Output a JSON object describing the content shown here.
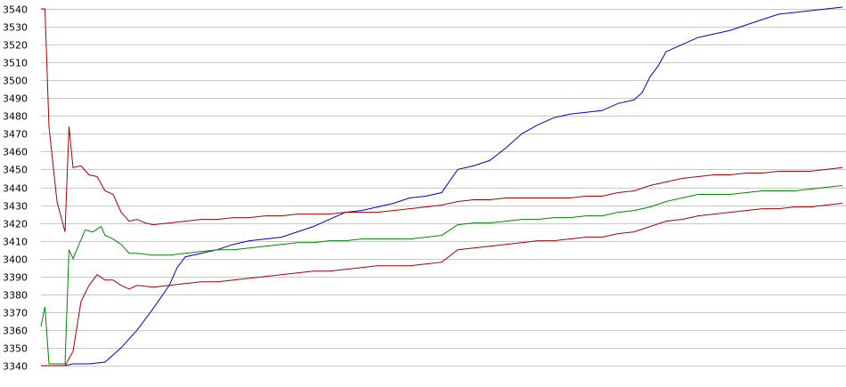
{
  "chart_data": {
    "type": "line",
    "title": "",
    "xlabel": "",
    "ylabel": "",
    "ylim": [
      3340,
      3540
    ],
    "yticks": [
      3540,
      3530,
      3520,
      3510,
      3500,
      3490,
      3480,
      3470,
      3460,
      3450,
      3440,
      3430,
      3420,
      3410,
      3400,
      3390,
      3380,
      3370,
      3360,
      3350,
      3340
    ],
    "grid": "horizontal",
    "legend": "none",
    "xlim": [
      0,
      100
    ],
    "series": [
      {
        "color": "#0000cc",
        "points": [
          [
            0,
            3340
          ],
          [
            3,
            3340
          ],
          [
            4,
            3341
          ],
          [
            6,
            3341
          ],
          [
            8,
            3342
          ],
          [
            10,
            3350
          ],
          [
            12,
            3360
          ],
          [
            14,
            3372
          ],
          [
            16,
            3385
          ],
          [
            17,
            3395
          ],
          [
            18,
            3401
          ],
          [
            20,
            3403
          ],
          [
            22,
            3405
          ],
          [
            24,
            3408
          ],
          [
            26,
            3410
          ],
          [
            28,
            3411
          ],
          [
            30,
            3412
          ],
          [
            32,
            3415
          ],
          [
            34,
            3418
          ],
          [
            36,
            3422
          ],
          [
            38,
            3426
          ],
          [
            40,
            3427
          ],
          [
            42,
            3429
          ],
          [
            44,
            3431
          ],
          [
            46,
            3434
          ],
          [
            48,
            3435
          ],
          [
            50,
            3437
          ],
          [
            52,
            3450
          ],
          [
            54,
            3452
          ],
          [
            56,
            3455
          ],
          [
            58,
            3462
          ],
          [
            60,
            3470
          ],
          [
            62,
            3475
          ],
          [
            64,
            3479
          ],
          [
            66,
            3481
          ],
          [
            68,
            3482
          ],
          [
            70,
            3483
          ],
          [
            72,
            3487
          ],
          [
            74,
            3489
          ],
          [
            75,
            3493
          ],
          [
            76,
            3502
          ],
          [
            77,
            3508
          ],
          [
            78,
            3516
          ],
          [
            80,
            3520
          ],
          [
            82,
            3524
          ],
          [
            84,
            3526
          ],
          [
            86,
            3528
          ],
          [
            88,
            3531
          ],
          [
            90,
            3534
          ],
          [
            92,
            3537
          ],
          [
            94,
            3538
          ],
          [
            96,
            3539
          ],
          [
            98,
            3540
          ],
          [
            100,
            3541
          ]
        ]
      },
      {
        "color": "#008800",
        "points": [
          [
            0,
            3362
          ],
          [
            0.5,
            3373
          ],
          [
            1,
            3341
          ],
          [
            3,
            3341
          ],
          [
            3.5,
            3405
          ],
          [
            4,
            3400
          ],
          [
            5.5,
            3416
          ],
          [
            6.5,
            3415
          ],
          [
            7.5,
            3418
          ],
          [
            8,
            3413
          ],
          [
            9,
            3411
          ],
          [
            10,
            3408
          ],
          [
            11,
            3403
          ],
          [
            12,
            3403
          ],
          [
            14,
            3402
          ],
          [
            16,
            3402
          ],
          [
            18,
            3403
          ],
          [
            20,
            3404
          ],
          [
            22,
            3405
          ],
          [
            24,
            3405
          ],
          [
            26,
            3406
          ],
          [
            28,
            3407
          ],
          [
            30,
            3408
          ],
          [
            32,
            3409
          ],
          [
            34,
            3409
          ],
          [
            36,
            3410
          ],
          [
            38,
            3410
          ],
          [
            40,
            3411
          ],
          [
            42,
            3411
          ],
          [
            44,
            3411
          ],
          [
            46,
            3411
          ],
          [
            48,
            3412
          ],
          [
            50,
            3413
          ],
          [
            52,
            3419
          ],
          [
            54,
            3420
          ],
          [
            56,
            3420
          ],
          [
            58,
            3421
          ],
          [
            60,
            3422
          ],
          [
            62,
            3422
          ],
          [
            64,
            3423
          ],
          [
            66,
            3423
          ],
          [
            68,
            3424
          ],
          [
            70,
            3424
          ],
          [
            72,
            3426
          ],
          [
            74,
            3427
          ],
          [
            76,
            3429
          ],
          [
            78,
            3432
          ],
          [
            80,
            3434
          ],
          [
            82,
            3436
          ],
          [
            84,
            3436
          ],
          [
            86,
            3436
          ],
          [
            88,
            3437
          ],
          [
            90,
            3438
          ],
          [
            92,
            3438
          ],
          [
            94,
            3438
          ],
          [
            96,
            3439
          ],
          [
            98,
            3440
          ],
          [
            100,
            3441
          ]
        ]
      },
      {
        "color": "#aa0000",
        "points": [
          [
            0,
            3540
          ],
          [
            0.5,
            3540
          ],
          [
            1,
            3474
          ],
          [
            2,
            3432
          ],
          [
            3,
            3415
          ],
          [
            3.5,
            3474
          ],
          [
            4,
            3451
          ],
          [
            5,
            3452
          ],
          [
            6,
            3447
          ],
          [
            7,
            3446
          ],
          [
            8,
            3438
          ],
          [
            9,
            3436
          ],
          [
            10,
            3426
          ],
          [
            11,
            3421
          ],
          [
            12,
            3422
          ],
          [
            13,
            3420
          ],
          [
            14,
            3419
          ],
          [
            16,
            3420
          ],
          [
            18,
            3421
          ],
          [
            20,
            3422
          ],
          [
            22,
            3422
          ],
          [
            24,
            3423
          ],
          [
            26,
            3423
          ],
          [
            28,
            3424
          ],
          [
            30,
            3424
          ],
          [
            32,
            3425
          ],
          [
            34,
            3425
          ],
          [
            36,
            3425
          ],
          [
            38,
            3426
          ],
          [
            40,
            3426
          ],
          [
            42,
            3426
          ],
          [
            44,
            3427
          ],
          [
            46,
            3428
          ],
          [
            48,
            3429
          ],
          [
            50,
            3430
          ],
          [
            52,
            3432
          ],
          [
            54,
            3433
          ],
          [
            56,
            3433
          ],
          [
            58,
            3434
          ],
          [
            60,
            3434
          ],
          [
            62,
            3434
          ],
          [
            64,
            3434
          ],
          [
            66,
            3434
          ],
          [
            68,
            3435
          ],
          [
            70,
            3435
          ],
          [
            72,
            3437
          ],
          [
            74,
            3438
          ],
          [
            76,
            3441
          ],
          [
            78,
            3443
          ],
          [
            80,
            3445
          ],
          [
            82,
            3446
          ],
          [
            84,
            3447
          ],
          [
            86,
            3447
          ],
          [
            88,
            3448
          ],
          [
            90,
            3448
          ],
          [
            92,
            3449
          ],
          [
            94,
            3449
          ],
          [
            96,
            3449
          ],
          [
            98,
            3450
          ],
          [
            100,
            3451
          ]
        ]
      },
      {
        "color": "#aa0000",
        "points": [
          [
            0,
            3340
          ],
          [
            3,
            3340
          ],
          [
            4,
            3348
          ],
          [
            5,
            3376
          ],
          [
            6,
            3385
          ],
          [
            7,
            3391
          ],
          [
            8,
            3388
          ],
          [
            9,
            3388
          ],
          [
            10,
            3385
          ],
          [
            11,
            3383
          ],
          [
            12,
            3385
          ],
          [
            14,
            3384
          ],
          [
            16,
            3385
          ],
          [
            18,
            3386
          ],
          [
            20,
            3387
          ],
          [
            22,
            3387
          ],
          [
            24,
            3388
          ],
          [
            26,
            3389
          ],
          [
            28,
            3390
          ],
          [
            30,
            3391
          ],
          [
            32,
            3392
          ],
          [
            34,
            3393
          ],
          [
            36,
            3393
          ],
          [
            38,
            3394
          ],
          [
            40,
            3395
          ],
          [
            42,
            3396
          ],
          [
            44,
            3396
          ],
          [
            46,
            3396
          ],
          [
            48,
            3397
          ],
          [
            50,
            3398
          ],
          [
            52,
            3405
          ],
          [
            54,
            3406
          ],
          [
            56,
            3407
          ],
          [
            58,
            3408
          ],
          [
            60,
            3409
          ],
          [
            62,
            3410
          ],
          [
            64,
            3410
          ],
          [
            66,
            3411
          ],
          [
            68,
            3412
          ],
          [
            70,
            3412
          ],
          [
            72,
            3414
          ],
          [
            74,
            3415
          ],
          [
            76,
            3418
          ],
          [
            78,
            3421
          ],
          [
            80,
            3422
          ],
          [
            82,
            3424
          ],
          [
            84,
            3425
          ],
          [
            86,
            3426
          ],
          [
            88,
            3427
          ],
          [
            90,
            3428
          ],
          [
            92,
            3428
          ],
          [
            94,
            3429
          ],
          [
            96,
            3429
          ],
          [
            98,
            3430
          ],
          [
            100,
            3431
          ]
        ]
      }
    ]
  }
}
